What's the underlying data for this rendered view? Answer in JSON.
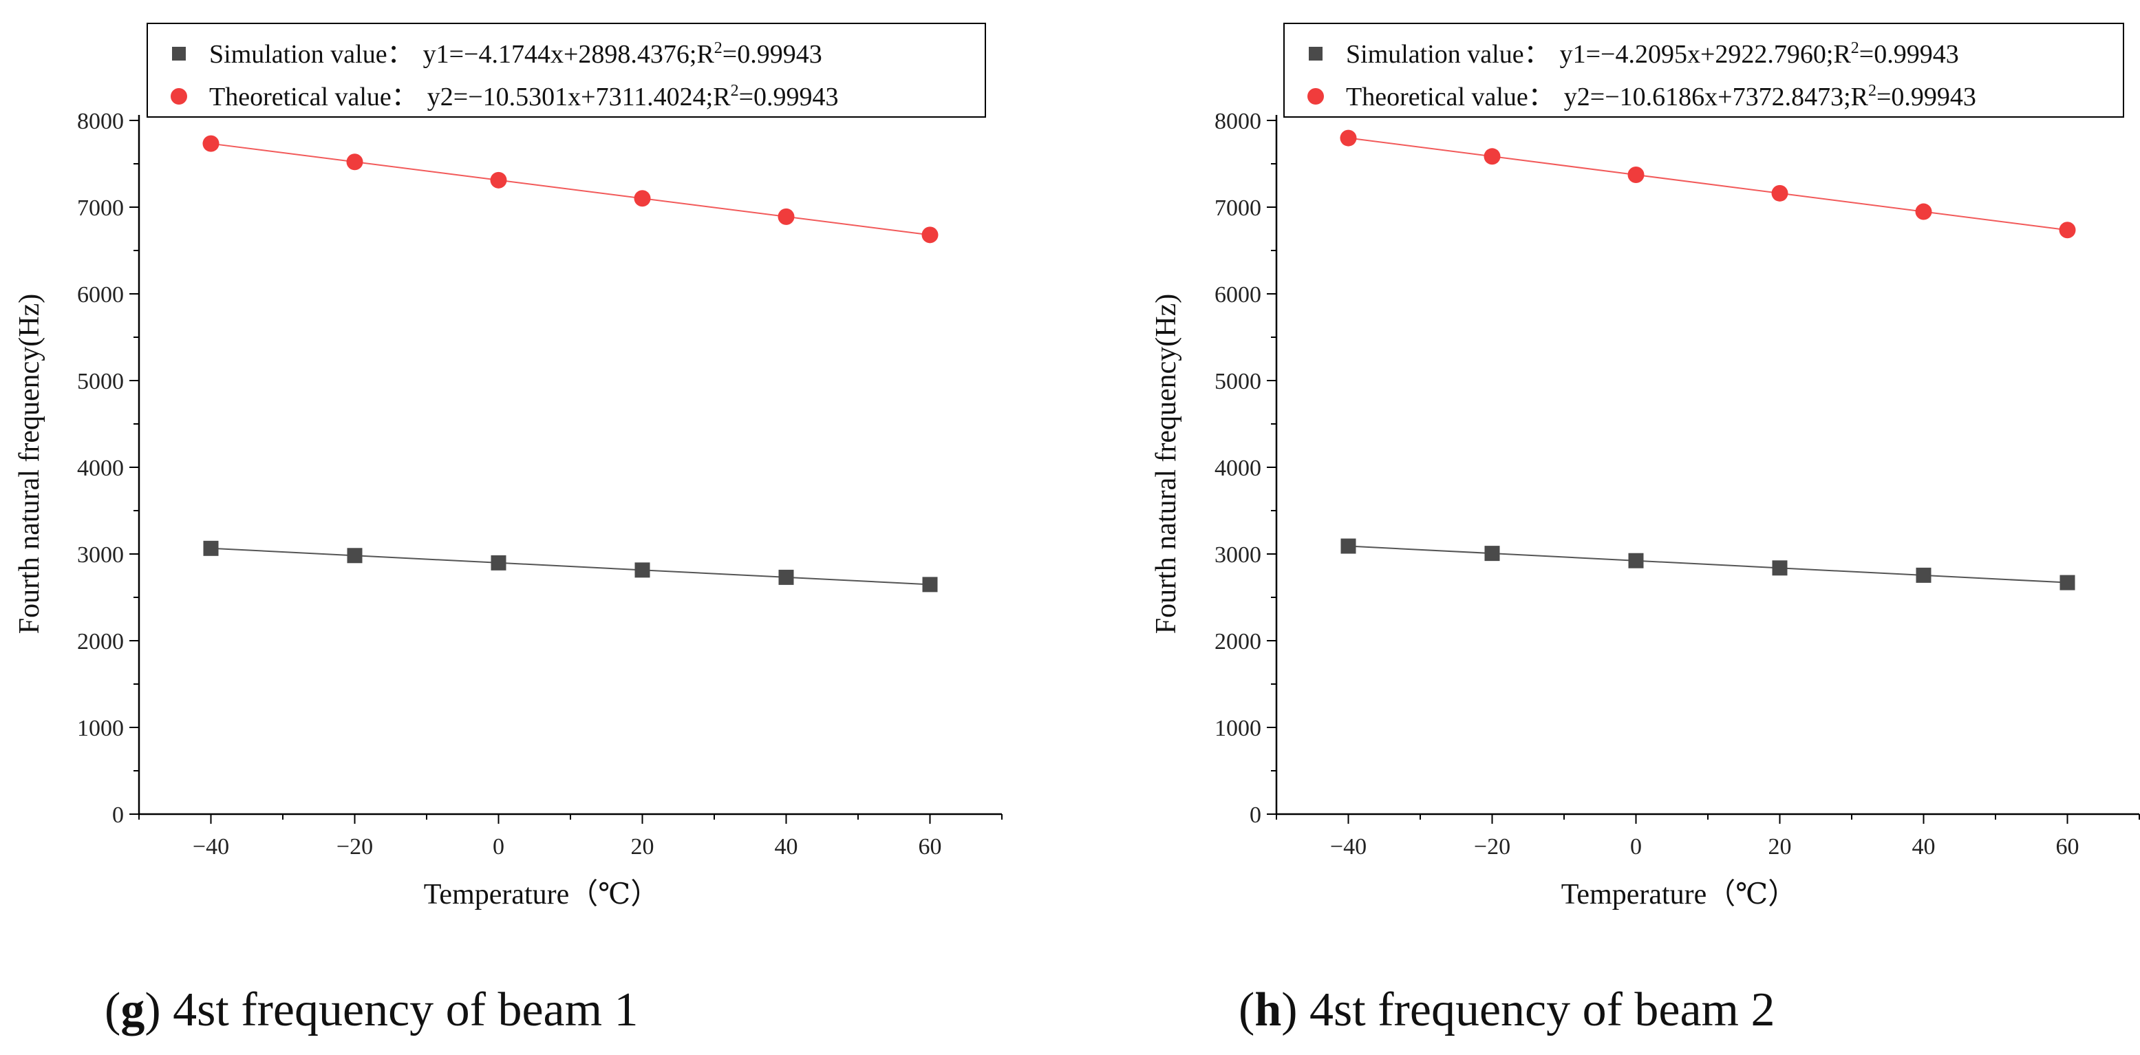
{
  "colors": {
    "simulation": "#4a4a4a",
    "theoretical": "#f03c3c",
    "simulation_fit": "#555555",
    "theoretical_fit": "#f25a5a"
  },
  "chart_data": [
    {
      "type": "scatter",
      "panel": "g",
      "x": [
        -40,
        -20,
        0,
        20,
        40,
        60
      ],
      "series": [
        {
          "name": "Simulation value",
          "marker": "square",
          "values": [
            3065,
            2982,
            2898,
            2815,
            2731,
            2648
          ],
          "equation": "y1=−4.1744x+2898.4376;R",
          "r2": "=0.99943",
          "legend_prefix": "Simulation value：",
          "fit": {
            "slope": -4.1744,
            "intercept": 2898.4376
          }
        },
        {
          "name": "Theoretical value",
          "marker": "circle",
          "values": [
            7733,
            7522,
            7311,
            7101,
            6890,
            6680
          ],
          "equation": "y2=−10.5301x+7311.4024;R",
          "r2": "=0.99943",
          "legend_prefix": "Theoretical value：",
          "fit": {
            "slope": -10.5301,
            "intercept": 7311.4024
          }
        }
      ],
      "xlabel": "Temperature（℃）",
      "ylabel": "Fourth natural frequency(Hz)",
      "xlim": [
        -50,
        70
      ],
      "ylim": [
        0,
        8000
      ],
      "xticks": [
        -40,
        -20,
        0,
        20,
        40,
        60
      ],
      "xtick_labels": [
        "−40",
        "−20",
        "0",
        "20",
        "40",
        "60"
      ],
      "yticks": [
        0,
        1000,
        2000,
        3000,
        4000,
        5000,
        6000,
        7000,
        8000
      ],
      "legend": "top",
      "caption_letter": "g",
      "caption_text": ") 4st frequency of beam 1",
      "caption_open": "("
    },
    {
      "type": "scatter",
      "panel": "h",
      "x": [
        -40,
        -20,
        0,
        20,
        40,
        60
      ],
      "series": [
        {
          "name": "Simulation value",
          "marker": "square",
          "values": [
            3091,
            3007,
            2923,
            2839,
            2755,
            2670
          ],
          "equation": "y1=−4.2095x+2922.7960;R",
          "r2": "=0.99943",
          "legend_prefix": "Simulation value：",
          "fit": {
            "slope": -4.2095,
            "intercept": 2922.796
          }
        },
        {
          "name": "Theoretical value",
          "marker": "circle",
          "values": [
            7797,
            7585,
            7373,
            7160,
            6948,
            6736
          ],
          "equation": "y2=−10.6186x+7372.8473;R",
          "r2": "=0.99943",
          "legend_prefix": "Theoretical value：",
          "fit": {
            "slope": -10.6186,
            "intercept": 7372.8473
          }
        }
      ],
      "xlabel": "Temperature（℃）",
      "ylabel": "Fourth natural frequency(Hz)",
      "xlim": [
        -50,
        70
      ],
      "ylim": [
        0,
        8000
      ],
      "xticks": [
        -40,
        -20,
        0,
        20,
        40,
        60
      ],
      "xtick_labels": [
        "−40",
        "−20",
        "0",
        "20",
        "40",
        "60"
      ],
      "yticks": [
        0,
        1000,
        2000,
        3000,
        4000,
        5000,
        6000,
        7000,
        8000
      ],
      "legend": "top",
      "caption_letter": "h",
      "caption_text": ") 4st frequency of beam 2",
      "caption_open": "("
    }
  ]
}
